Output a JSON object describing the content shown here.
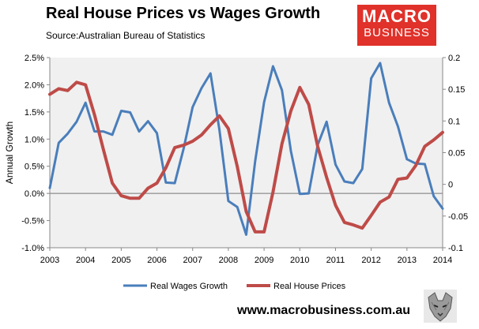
{
  "header": {
    "title": "Real House Prices vs Wages Growth",
    "source": "Source:Australian Bureau of Statistics"
  },
  "logo": {
    "line1": "MACRO",
    "line2": "BUSINESS",
    "bg": "#e0312a"
  },
  "footer": {
    "website": "www.macrobusiness.com.au"
  },
  "chart_data": {
    "type": "line",
    "title": "Real House Prices vs Wages Growth",
    "ylabel": "Annual Growth",
    "x_ticks": [
      "2003",
      "2004",
      "2005",
      "2006",
      "2007",
      "2008",
      "2009",
      "2010",
      "2011",
      "2012",
      "2013",
      "2014"
    ],
    "xlim": [
      2003,
      2014
    ],
    "ylim_left": [
      -0.01,
      0.025
    ],
    "ylim_right": [
      -0.1,
      0.2
    ],
    "left_ticks": [
      "2.5%",
      "2.0%",
      "1.5%",
      "1.0%",
      "0.5%",
      "0.0%",
      "-0.5%",
      "-1.0%"
    ],
    "right_ticks": [
      "0.2",
      "0.15",
      "0.1",
      "0.05",
      "0",
      "-0.05",
      "-0.1"
    ],
    "legend_position": "bottom",
    "grid": false,
    "plot_background": "#f0f0f0",
    "series": [
      {
        "name": "Real Wages Growth",
        "axis": "left",
        "color": "#4a7ebb",
        "x": [
          2003.0,
          2003.25,
          2003.5,
          2003.75,
          2004.0,
          2004.25,
          2004.5,
          2004.75,
          2005.0,
          2005.25,
          2005.5,
          2005.75,
          2006.0,
          2006.25,
          2006.5,
          2006.75,
          2007.0,
          2007.25,
          2007.5,
          2007.75,
          2008.0,
          2008.25,
          2008.5,
          2008.75,
          2009.0,
          2009.25,
          2009.5,
          2009.75,
          2010.0,
          2010.25,
          2010.5,
          2010.75,
          2011.0,
          2011.25,
          2011.5,
          2011.75,
          2012.0,
          2012.25,
          2012.5,
          2012.75,
          2013.0,
          2013.25,
          2013.5,
          2013.75,
          2014.0
        ],
        "values": [
          0.001,
          0.0093,
          0.011,
          0.0132,
          0.0167,
          0.0114,
          0.0114,
          0.0108,
          0.0152,
          0.0149,
          0.0114,
          0.0133,
          0.0111,
          0.002,
          0.0019,
          0.0083,
          0.0159,
          0.0194,
          0.0221,
          0.0117,
          -0.0014,
          -0.0025,
          -0.0076,
          0.0059,
          0.0168,
          0.0234,
          0.019,
          0.0078,
          -0.0001,
          0.0,
          0.0089,
          0.0132,
          0.0053,
          0.0022,
          0.0019,
          0.0045,
          0.0212,
          0.024,
          0.0167,
          0.0123,
          0.0063,
          0.0055,
          0.0054,
          -0.0005,
          -0.0028
        ]
      },
      {
        "name": "Real House Prices",
        "axis": "right",
        "color": "#be4b48",
        "x": [
          2003.0,
          2003.25,
          2003.5,
          2003.75,
          2004.0,
          2004.25,
          2004.5,
          2004.75,
          2005.0,
          2005.25,
          2005.5,
          2005.75,
          2006.0,
          2006.25,
          2006.5,
          2006.75,
          2007.0,
          2007.25,
          2007.5,
          2007.75,
          2008.0,
          2008.25,
          2008.5,
          2008.75,
          2009.0,
          2009.25,
          2009.5,
          2009.75,
          2010.0,
          2010.25,
          2010.5,
          2010.75,
          2011.0,
          2011.25,
          2011.5,
          2011.75,
          2012.0,
          2012.25,
          2012.5,
          2012.75,
          2013.0,
          2013.25,
          2013.5,
          2013.75,
          2014.0
        ],
        "values": [
          0.142,
          0.151,
          0.148,
          0.161,
          0.157,
          0.11,
          0.055,
          0.002,
          -0.018,
          -0.022,
          -0.022,
          -0.006,
          0.002,
          0.026,
          0.058,
          0.062,
          0.068,
          0.078,
          0.094,
          0.108,
          0.088,
          0.028,
          -0.043,
          -0.075,
          -0.075,
          -0.012,
          0.064,
          0.116,
          0.153,
          0.126,
          0.06,
          0.011,
          -0.033,
          -0.06,
          -0.064,
          -0.069,
          -0.049,
          -0.028,
          -0.02,
          0.008,
          0.01,
          0.03,
          0.06,
          0.07,
          0.082
        ]
      }
    ]
  }
}
